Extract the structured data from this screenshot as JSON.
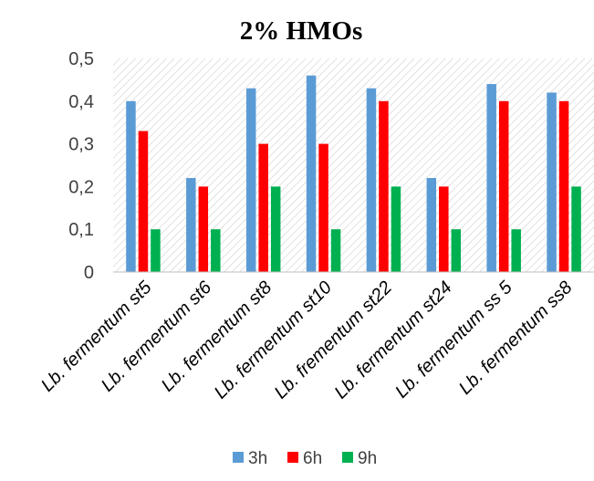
{
  "chart_data": {
    "type": "bar",
    "title": "2% HMOs",
    "xlabel": "",
    "ylabel": "",
    "categories": [
      "Lb. fermentum st5",
      "Lb. fermentum st6",
      "Lb. fermentum st8",
      "Lb. fermentum st10",
      "Lb. frementum st22",
      "Lb. fermentum st24",
      "Lb. fermentum ss 5",
      "Lb. fermentum ss8"
    ],
    "series": [
      {
        "name": "3h",
        "color": "#5B9BD5",
        "values": [
          0.4,
          0.22,
          0.43,
          0.46,
          0.43,
          0.22,
          0.44,
          0.42
        ]
      },
      {
        "name": "6h",
        "color": "#FF0000",
        "values": [
          0.33,
          0.2,
          0.3,
          0.3,
          0.4,
          0.2,
          0.4,
          0.4
        ]
      },
      {
        "name": "9h",
        "color": "#00B050",
        "values": [
          0.1,
          0.1,
          0.2,
          0.1,
          0.2,
          0.1,
          0.1,
          0.2
        ]
      }
    ],
    "ylim": [
      0,
      0.5
    ],
    "yticks": [
      "0",
      "0,1",
      "0,2",
      "0,3",
      "0,4",
      "0,5"
    ],
    "grid": false,
    "plot_background": "diagonal-hatch",
    "legend_position": "bottom"
  }
}
